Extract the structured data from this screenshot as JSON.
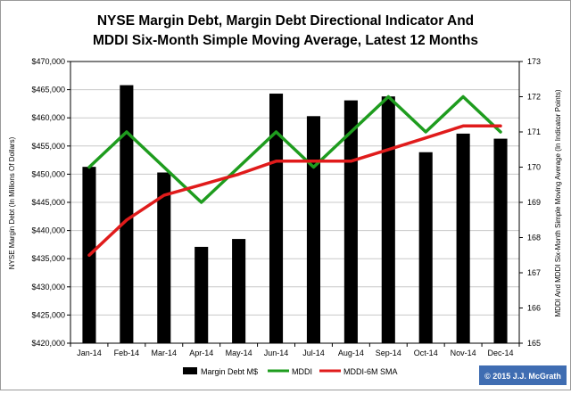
{
  "chart_data": {
    "type": "bar",
    "title": [
      "NYSE Margin Debt, Margin Debt Directional Indicator And",
      "MDDI Six-Month Simple Moving Average, Latest 12 Months"
    ],
    "categories": [
      "Jan-14",
      "Feb-14",
      "Mar-14",
      "Apr-14",
      "May-14",
      "Jun-14",
      "Jul-14",
      "Aug-14",
      "Sep-14",
      "Oct-14",
      "Nov-14",
      "Dec-14"
    ],
    "ylabel": "NYSE Margin Debt (In Millions Of Dollars)",
    "y2label": "MDDI And MDDI Six-Month Simple Moving Average (In Indicator Points)",
    "ylim": [
      420000,
      470000
    ],
    "y2lim": [
      165,
      173
    ],
    "yticks": [
      "$470,000",
      "$465,000",
      "$460,000",
      "$455,000",
      "$450,000",
      "$445,000",
      "$440,000",
      "$435,000",
      "$430,000",
      "$425,000",
      "$420,000"
    ],
    "y2ticks": [
      "173",
      "172",
      "171",
      "170",
      "169",
      "168",
      "167",
      "166",
      "165"
    ],
    "grid": true,
    "legend_position": "bottom",
    "series": [
      {
        "name": "Margin Debt M$",
        "kind": "bar",
        "axis": "left",
        "color": "#000000",
        "values": [
          451300,
          465800,
          450300,
          437100,
          438500,
          464300,
          460300,
          463100,
          463800,
          453900,
          457200,
          456300
        ]
      },
      {
        "name": "MDDI",
        "kind": "line",
        "axis": "right",
        "color": "#1e9c1e",
        "values": [
          170,
          171,
          170,
          169,
          170,
          171,
          170,
          171,
          172,
          171,
          172,
          171
        ]
      },
      {
        "name": "MDDI-6M SMA",
        "kind": "line",
        "axis": "right",
        "color": "#e01b1b",
        "values": [
          167.5,
          168.5,
          169.2,
          169.5,
          169.8,
          170.17,
          170.17,
          170.17,
          170.5,
          170.83,
          171.17,
          171.17
        ]
      }
    ],
    "copyright": "© 2015 J.J. McGrath",
    "copyright_bg": "#3f6db2"
  }
}
